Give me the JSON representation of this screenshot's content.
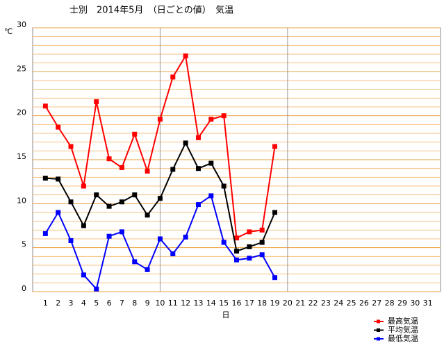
{
  "chart_data": {
    "type": "line",
    "title": "士別　2014年5月　（日ごとの値）　気温",
    "y_unit": "℃",
    "x_label": "日",
    "categories": [
      "1",
      "2",
      "3",
      "4",
      "5",
      "6",
      "7",
      "8",
      "9",
      "10",
      "11",
      "12",
      "13",
      "14",
      "15",
      "16",
      "17",
      "18",
      "19",
      "20",
      "21",
      "22",
      "23",
      "24",
      "25",
      "26",
      "27",
      "28",
      "29",
      "30",
      "31"
    ],
    "series": [
      {
        "name": "最高気温",
        "color": "#ff0000",
        "values": [
          21.1,
          18.7,
          16.5,
          12.0,
          21.6,
          15.1,
          14.1,
          17.9,
          13.7,
          19.6,
          24.4,
          26.8,
          17.5,
          19.6,
          20.0,
          6.1,
          6.8,
          7.0,
          16.5,
          null,
          null,
          null,
          null,
          null,
          null,
          null,
          null,
          null,
          null,
          null,
          null
        ]
      },
      {
        "name": "平均気温",
        "color": "#000000",
        "values": [
          12.9,
          12.8,
          10.2,
          7.5,
          11.0,
          9.7,
          10.2,
          11.0,
          8.7,
          10.6,
          13.9,
          16.9,
          14.0,
          14.6,
          12.0,
          4.6,
          5.1,
          5.6,
          9.0,
          null,
          null,
          null,
          null,
          null,
          null,
          null,
          null,
          null,
          null,
          null,
          null
        ]
      },
      {
        "name": "最低気温",
        "color": "#0000ff",
        "values": [
          6.6,
          9.0,
          5.8,
          1.9,
          0.3,
          6.3,
          6.8,
          3.4,
          2.5,
          6.0,
          4.3,
          6.2,
          9.9,
          10.9,
          5.6,
          3.6,
          3.8,
          4.2,
          1.6,
          null,
          null,
          null,
          null,
          null,
          null,
          null,
          null,
          null,
          null,
          null,
          null
        ]
      }
    ],
    "ylim": [
      0,
      30
    ],
    "yticks": [
      0,
      5,
      10,
      15,
      20,
      25,
      30
    ],
    "yminor_ticks": [
      1,
      2,
      3,
      4,
      6,
      7,
      8,
      9,
      11,
      12,
      13,
      14,
      16,
      17,
      18,
      19,
      21,
      22,
      23,
      24,
      26,
      27,
      28,
      29
    ],
    "xgrid": [
      "10",
      "20"
    ],
    "legend": "bottom-right"
  }
}
